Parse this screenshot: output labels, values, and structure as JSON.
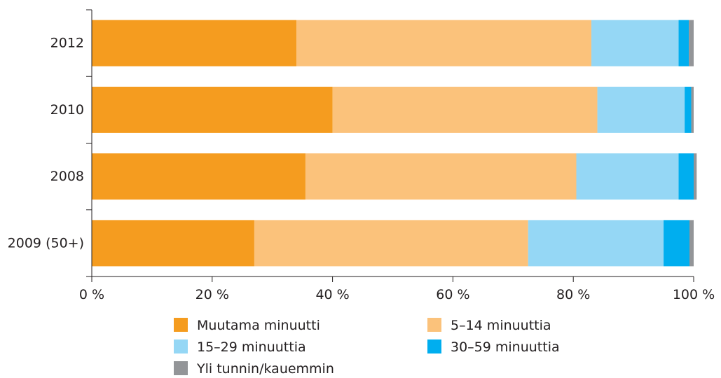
{
  "chart_data": {
    "type": "bar",
    "orientation": "horizontal",
    "stacked": true,
    "title": "",
    "xlabel": "",
    "ylabel": "",
    "xlim": [
      0,
      100
    ],
    "x_ticks": [
      "0 %",
      "20 %",
      "40 %",
      "60 %",
      "80 %",
      "100 %"
    ],
    "categories": [
      "2012",
      "2010",
      "2008",
      "2009 (50+)"
    ],
    "series": [
      {
        "name": "Muutama minuutti",
        "color": "#f59c1f",
        "values": [
          34,
          40,
          35.5,
          27
        ]
      },
      {
        "name": "5–14 minuuttia",
        "color": "#fbc27b",
        "values": [
          49,
          44,
          45,
          45.5
        ]
      },
      {
        "name": "15–29 minuuttia",
        "color": "#95d7f5",
        "values": [
          14.5,
          14.5,
          17,
          22.5
        ]
      },
      {
        "name": "30–59  minuuttia",
        "color": "#00aeef",
        "values": [
          1.7,
          1.1,
          2.5,
          4.3
        ]
      },
      {
        "name": "Yli tunnin/kauemmin",
        "color": "#939598",
        "values": [
          0.8,
          0.4,
          0.5,
          0.7
        ]
      }
    ],
    "grid": false,
    "legend_placement": "bottom"
  }
}
